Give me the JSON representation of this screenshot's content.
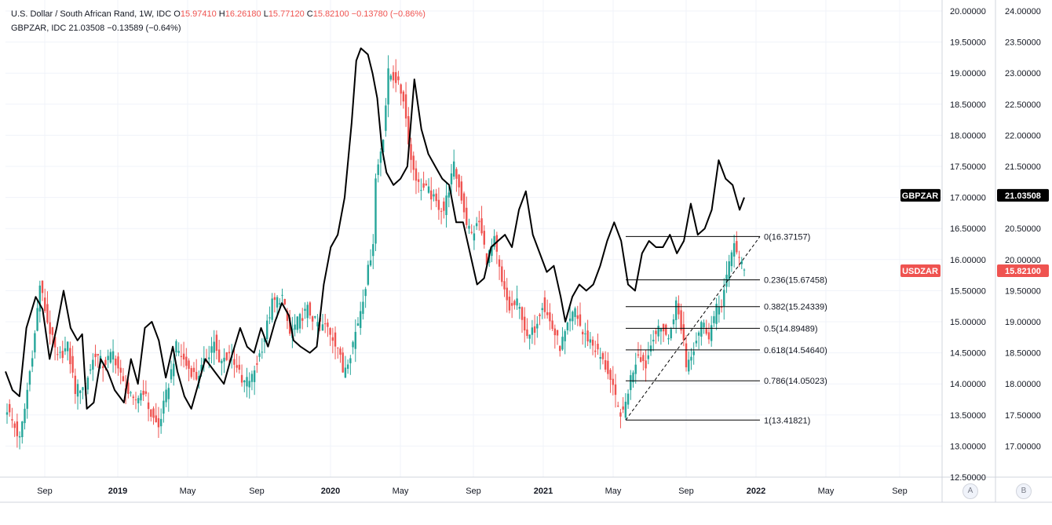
{
  "legend": {
    "main_name": "U.S. Dollar / South African Rand, 1W, IDC",
    "main_o_label": "O",
    "main_o": "15.97410",
    "main_h_label": "H",
    "main_h": "16.26180",
    "main_l_label": "L",
    "main_l": "15.77120",
    "main_c_label": "C",
    "main_c": "15.82100",
    "main_chg": "−0.13780 (−0.86%)",
    "second_name": "GBPZAR, IDC",
    "second_val": "21.03508",
    "second_chg": "−0.13589 (−0.64%)"
  },
  "colors": {
    "up": "#26a69a",
    "down": "#ef5350",
    "line": "#000000",
    "usd_tag": "#ef5350",
    "gbp_tag": "#000000"
  },
  "axis_buttons": {
    "a": "A",
    "b": "B"
  },
  "chart_data": {
    "type": "candlestick",
    "x_ticks": [
      "Sep",
      "2019",
      "May",
      "Sep",
      "2020",
      "May",
      "Sep",
      "2021",
      "May",
      "Sep",
      "2022",
      "May",
      "Sep"
    ],
    "bold_ticks": [
      "2019",
      "2020",
      "2021",
      "2022"
    ],
    "y_left_ticks": [
      "20.00000",
      "19.50000",
      "19.00000",
      "18.50000",
      "18.00000",
      "17.50000",
      "17.00000",
      "16.50000",
      "16.00000",
      "15.50000",
      "15.00000",
      "14.50000",
      "14.00000",
      "13.50000",
      "13.00000",
      "12.50000"
    ],
    "y_left_range": [
      12.5,
      20.0
    ],
    "y_right_ticks": [
      "24.00000",
      "23.50000",
      "23.00000",
      "22.50000",
      "22.00000",
      "21.50000",
      "21.00000",
      "20.50000",
      "20.00000",
      "19.50000",
      "19.00000",
      "18.50000",
      "18.00000",
      "17.50000",
      "17.00000"
    ],
    "y_right_range": [
      16.5,
      24.0
    ],
    "series": [
      {
        "name": "U.S. Dollar / South African Rand, 1W, IDC",
        "tag": "USDZAR",
        "last": "15.82100",
        "axis": "left",
        "key_closes": [
          [
            0,
            13.6
          ],
          [
            3,
            13.3
          ],
          [
            5,
            13.1
          ],
          [
            7,
            13.6
          ],
          [
            11,
            14.8
          ],
          [
            13,
            15.6
          ],
          [
            16,
            15.0
          ],
          [
            20,
            14.4
          ],
          [
            24,
            14.6
          ],
          [
            27,
            13.9
          ],
          [
            31,
            14.0
          ],
          [
            35,
            14.5
          ],
          [
            38,
            14.3
          ],
          [
            42,
            14.5
          ],
          [
            46,
            14.0
          ],
          [
            50,
            13.7
          ],
          [
            54,
            13.9
          ],
          [
            57,
            13.5
          ],
          [
            60,
            13.3
          ],
          [
            64,
            14.0
          ],
          [
            67,
            14.6
          ],
          [
            71,
            14.3
          ],
          [
            75,
            14.1
          ],
          [
            79,
            14.4
          ],
          [
            82,
            14.7
          ],
          [
            84,
            14.3
          ],
          [
            88,
            14.5
          ],
          [
            91,
            14.3
          ],
          [
            93,
            14.0
          ],
          [
            97,
            14.1
          ],
          [
            101,
            14.6
          ],
          [
            105,
            15.3
          ],
          [
            109,
            15.4
          ],
          [
            112,
            14.8
          ],
          [
            115,
            15.0
          ],
          [
            119,
            15.2
          ],
          [
            122,
            15.0
          ],
          [
            127,
            14.9
          ],
          [
            131,
            14.6
          ],
          [
            133,
            14.2
          ],
          [
            136,
            14.5
          ],
          [
            139,
            15.0
          ],
          [
            142,
            15.6
          ],
          [
            145,
            16.3
          ],
          [
            146,
            17.3
          ],
          [
            149,
            18.0
          ],
          [
            151,
            19.0
          ],
          [
            154,
            18.9
          ],
          [
            157,
            18.6
          ],
          [
            160,
            17.6
          ],
          [
            163,
            17.2
          ],
          [
            167,
            17.1
          ],
          [
            170,
            16.9
          ],
          [
            173,
            16.8
          ],
          [
            177,
            17.5
          ],
          [
            180,
            17.0
          ],
          [
            182,
            16.6
          ],
          [
            184,
            16.4
          ],
          [
            187,
            16.6
          ],
          [
            190,
            16.0
          ],
          [
            193,
            16.3
          ],
          [
            196,
            15.6
          ],
          [
            199,
            15.2
          ],
          [
            202,
            15.3
          ],
          [
            204,
            15.1
          ],
          [
            206,
            14.7
          ],
          [
            209,
            14.9
          ],
          [
            212,
            15.3
          ],
          [
            216,
            14.9
          ],
          [
            219,
            14.6
          ],
          [
            222,
            14.9
          ],
          [
            225,
            15.2
          ],
          [
            228,
            14.8
          ],
          [
            231,
            14.7
          ],
          [
            234,
            14.5
          ],
          [
            238,
            14.2
          ],
          [
            240,
            13.9
          ],
          [
            242,
            13.6
          ],
          [
            244,
            13.5
          ],
          [
            247,
            14.1
          ],
          [
            250,
            14.5
          ],
          [
            253,
            14.3
          ],
          [
            256,
            14.8
          ],
          [
            260,
            14.9
          ],
          [
            262,
            14.7
          ],
          [
            265,
            15.3
          ],
          [
            268,
            14.7
          ],
          [
            269,
            14.3
          ],
          [
            272,
            14.6
          ],
          [
            275,
            15.0
          ],
          [
            278,
            14.8
          ],
          [
            281,
            15.2
          ],
          [
            283,
            15.3
          ],
          [
            286,
            15.9
          ],
          [
            288,
            16.3
          ],
          [
            290,
            16.0
          ],
          [
            292,
            15.82
          ]
        ]
      },
      {
        "name": "GBPZAR, IDC",
        "tag": "GBPZAR",
        "last": "21.03508",
        "axis": "right",
        "points": [
          [
            0,
            18.2
          ],
          [
            3,
            17.9
          ],
          [
            6,
            17.8
          ],
          [
            9,
            18.9
          ],
          [
            13,
            19.4
          ],
          [
            16,
            19.2
          ],
          [
            19,
            18.4
          ],
          [
            22,
            18.9
          ],
          [
            25,
            19.5
          ],
          [
            28,
            18.9
          ],
          [
            31,
            18.7
          ],
          [
            33,
            18.8
          ],
          [
            35,
            17.6
          ],
          [
            38,
            17.7
          ],
          [
            41,
            18.4
          ],
          [
            44,
            18.2
          ],
          [
            47,
            17.9
          ],
          [
            51,
            17.7
          ],
          [
            54,
            18.4
          ],
          [
            57,
            18.0
          ],
          [
            60,
            18.9
          ],
          [
            63,
            19.0
          ],
          [
            66,
            18.7
          ],
          [
            69,
            18.1
          ],
          [
            72,
            18.6
          ],
          [
            74,
            18.2
          ],
          [
            77,
            17.8
          ],
          [
            80,
            17.6
          ],
          [
            83,
            18.0
          ],
          [
            86,
            18.4
          ],
          [
            90,
            18.2
          ],
          [
            94,
            18.0
          ],
          [
            97,
            18.4
          ],
          [
            101,
            18.9
          ],
          [
            104,
            18.6
          ],
          [
            107,
            18.5
          ],
          [
            110,
            18.9
          ],
          [
            113,
            18.6
          ],
          [
            116,
            19.0
          ],
          [
            119,
            19.3
          ],
          [
            122,
            19.1
          ],
          [
            124,
            18.7
          ],
          [
            127,
            18.6
          ],
          [
            131,
            18.5
          ],
          [
            134,
            18.6
          ],
          [
            137,
            19.6
          ],
          [
            140,
            20.2
          ],
          [
            143,
            20.4
          ],
          [
            146,
            21.0
          ],
          [
            149,
            22.2
          ],
          [
            151,
            23.2
          ],
          [
            153,
            23.4
          ],
          [
            156,
            23.3
          ],
          [
            158,
            23.0
          ],
          [
            160,
            22.6
          ],
          [
            162,
            21.8
          ],
          [
            164,
            21.4
          ],
          [
            167,
            21.2
          ],
          [
            170,
            21.3
          ],
          [
            173,
            21.5
          ],
          [
            176,
            22.9
          ],
          [
            179,
            22.1
          ],
          [
            182,
            21.7
          ],
          [
            185,
            21.5
          ],
          [
            188,
            21.3
          ],
          [
            191,
            21.2
          ],
          [
            194,
            20.6
          ],
          [
            197,
            20.6
          ],
          [
            200,
            20.1
          ],
          [
            203,
            19.6
          ],
          [
            206,
            19.7
          ],
          [
            209,
            20.2
          ],
          [
            212,
            20.3
          ],
          [
            215,
            20.4
          ],
          [
            218,
            20.2
          ],
          [
            221,
            20.8
          ],
          [
            224,
            21.1
          ],
          [
            227,
            20.4
          ],
          [
            230,
            20.1
          ],
          [
            233,
            19.8
          ],
          [
            236,
            19.9
          ],
          [
            239,
            19.4
          ],
          [
            241,
            19.0
          ],
          [
            244,
            19.4
          ],
          [
            247,
            19.6
          ],
          [
            250,
            19.5
          ],
          [
            253,
            19.6
          ],
          [
            256,
            19.9
          ],
          [
            259,
            20.3
          ],
          [
            262,
            20.6
          ],
          [
            265,
            20.3
          ],
          [
            268,
            19.6
          ],
          [
            271,
            19.5
          ],
          [
            274,
            20.1
          ],
          [
            277,
            20.3
          ],
          [
            280,
            20.2
          ],
          [
            283,
            20.2
          ],
          [
            286,
            20.4
          ],
          [
            289,
            20.1
          ],
          [
            292,
            20.3
          ],
          [
            295,
            20.9
          ],
          [
            298,
            20.4
          ],
          [
            301,
            20.5
          ],
          [
            304,
            20.8
          ],
          [
            307,
            21.6
          ],
          [
            310,
            21.3
          ],
          [
            313,
            21.2
          ],
          [
            316,
            20.8
          ],
          [
            318,
            21.0
          ]
        ]
      }
    ],
    "annotations": {
      "type": "fibonacci_retracement",
      "levels": [
        {
          "ratio": "0",
          "price": 16.37157,
          "label": "0(16.37157)"
        },
        {
          "ratio": "0.236",
          "price": 15.67458,
          "label": "0.236(15.67458)"
        },
        {
          "ratio": "0.382",
          "price": 15.24339,
          "label": "0.382(15.24339)"
        },
        {
          "ratio": "0.5",
          "price": 14.89489,
          "label": "0.5(14.89489)"
        },
        {
          "ratio": "0.618",
          "price": 14.5464,
          "label": "0.618(14.54640)"
        },
        {
          "ratio": "0.786",
          "price": 14.05023,
          "label": "0.786(14.05023)"
        },
        {
          "ratio": "1",
          "price": 13.41821,
          "label": "1(13.41821)"
        }
      ]
    }
  }
}
